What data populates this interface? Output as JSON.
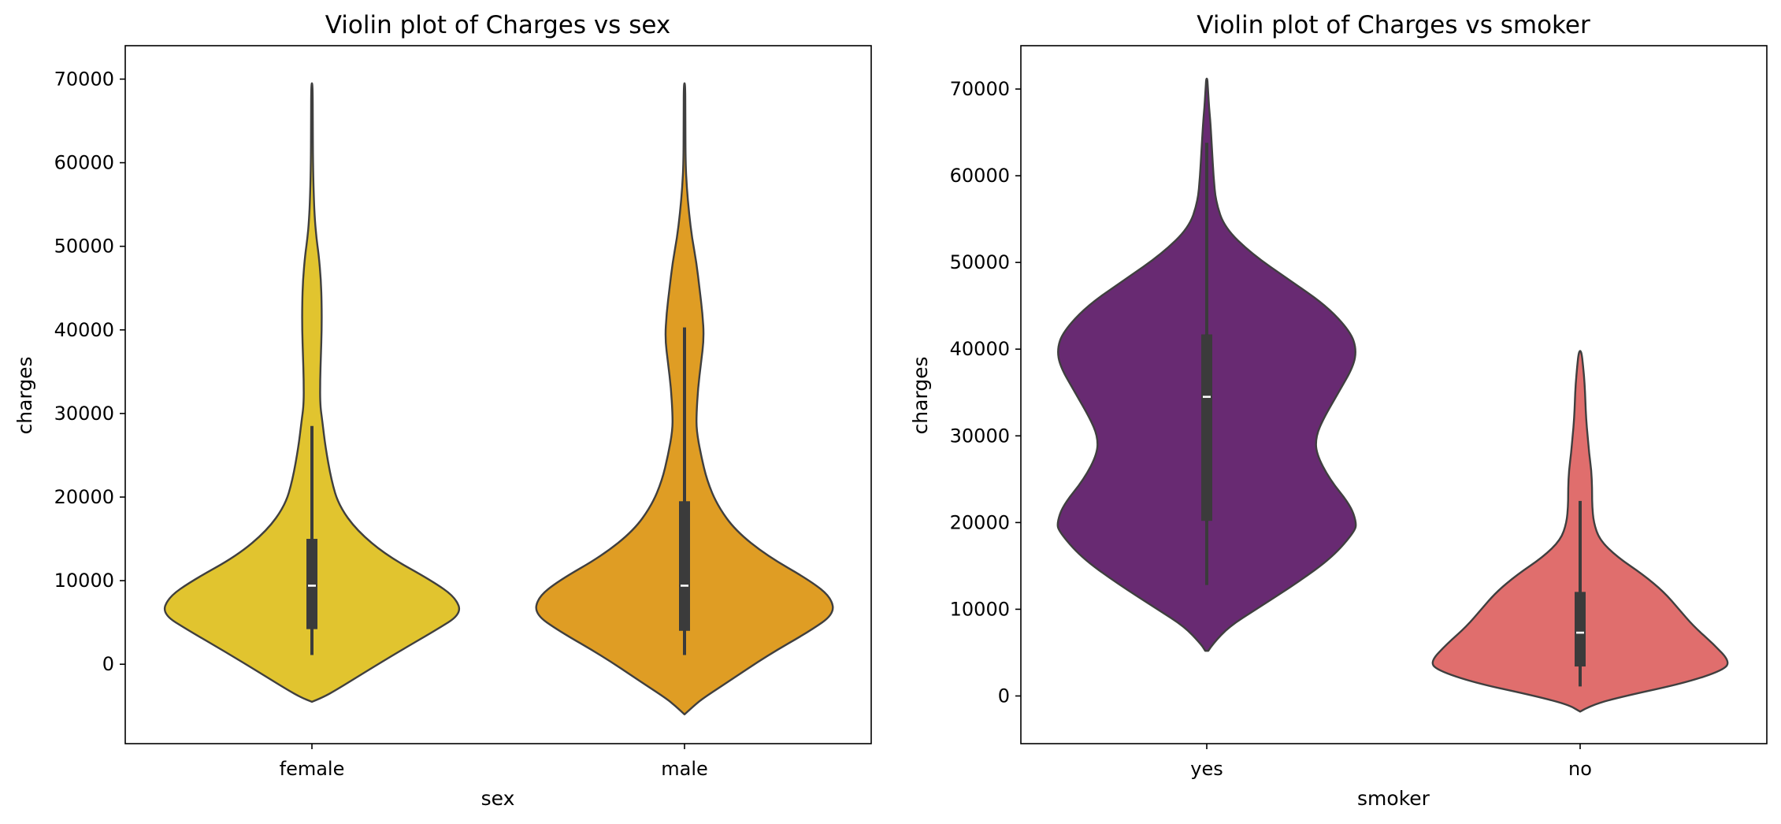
{
  "chart_data": [
    {
      "type": "violin",
      "title": "Violin plot of Charges vs sex",
      "xlabel": "sex",
      "ylabel": "charges",
      "categories": [
        "female",
        "male"
      ],
      "yticks": [
        0,
        10000,
        20000,
        30000,
        40000,
        50000,
        60000,
        70000
      ],
      "ylim": [
        -9500,
        74000
      ],
      "colors": [
        "#e1c42f",
        "#df9d24"
      ],
      "violins": [
        {
          "category": "female",
          "min": -4500,
          "max": 69500,
          "profile": [
            [
              -4500,
              0.0
            ],
            [
              -4000,
              0.07
            ],
            [
              -3000,
              0.17
            ],
            [
              -1000,
              0.35
            ],
            [
              1500,
              0.58
            ],
            [
              4000,
              0.82
            ],
            [
              6000,
              1.0
            ],
            [
              8000,
              0.96
            ],
            [
              10000,
              0.8
            ],
            [
              13000,
              0.5
            ],
            [
              16000,
              0.3
            ],
            [
              19000,
              0.18
            ],
            [
              22000,
              0.13
            ],
            [
              26000,
              0.09
            ],
            [
              29000,
              0.07
            ],
            [
              31000,
              0.055
            ],
            [
              34000,
              0.055
            ],
            [
              37000,
              0.06
            ],
            [
              40000,
              0.065
            ],
            [
              43000,
              0.065
            ],
            [
              46000,
              0.06
            ],
            [
              49000,
              0.045
            ],
            [
              51000,
              0.03
            ],
            [
              53000,
              0.02
            ],
            [
              56000,
              0.012
            ],
            [
              60000,
              0.007
            ],
            [
              65000,
              0.006
            ],
            [
              69500,
              0.005
            ]
          ],
          "q1": 4200,
          "median": 9400,
          "q3": 15000,
          "whisker_low": 1100,
          "whisker_high": 28500
        },
        {
          "category": "male",
          "min": -6000,
          "max": 69500,
          "profile": [
            [
              -6000,
              0.0
            ],
            [
              -5000,
              0.06
            ],
            [
              -4000,
              0.13
            ],
            [
              -2000,
              0.3
            ],
            [
              1000,
              0.55
            ],
            [
              4000,
              0.84
            ],
            [
              6000,
              1.0
            ],
            [
              8000,
              0.98
            ],
            [
              10000,
              0.84
            ],
            [
              13000,
              0.55
            ],
            [
              16000,
              0.34
            ],
            [
              19000,
              0.22
            ],
            [
              22000,
              0.15
            ],
            [
              25000,
              0.11
            ],
            [
              28000,
              0.08
            ],
            [
              30000,
              0.08
            ],
            [
              33000,
              0.09
            ],
            [
              36000,
              0.11
            ],
            [
              39000,
              0.13
            ],
            [
              42000,
              0.12
            ],
            [
              45000,
              0.1
            ],
            [
              48000,
              0.08
            ],
            [
              51000,
              0.05
            ],
            [
              54000,
              0.03
            ],
            [
              57000,
              0.015
            ],
            [
              60000,
              0.007
            ],
            [
              65000,
              0.006
            ],
            [
              69500,
              0.005
            ]
          ],
          "q1": 4000,
          "median": 9400,
          "q3": 19500,
          "whisker_low": 1100,
          "whisker_high": 40300
        }
      ]
    },
    {
      "type": "violin",
      "title": "Violin plot of Charges vs smoker",
      "xlabel": "smoker",
      "ylabel": "charges",
      "categories": [
        "yes",
        "no"
      ],
      "yticks": [
        0,
        10000,
        20000,
        30000,
        40000,
        50000,
        60000,
        70000
      ],
      "ylim": [
        -5500,
        75000
      ],
      "colors": [
        "#682a72",
        "#e06e6d"
      ],
      "violins": [
        {
          "category": "yes",
          "min": 5200,
          "max": 71200,
          "profile": [
            [
              5200,
              0.01
            ],
            [
              6000,
              0.04
            ],
            [
              8000,
              0.15
            ],
            [
              10000,
              0.33
            ],
            [
              13000,
              0.6
            ],
            [
              16000,
              0.84
            ],
            [
              19000,
              0.99
            ],
            [
              20000,
              1.0
            ],
            [
              22000,
              0.96
            ],
            [
              25000,
              0.82
            ],
            [
              28000,
              0.73
            ],
            [
              30000,
              0.73
            ],
            [
              32000,
              0.78
            ],
            [
              35000,
              0.88
            ],
            [
              38000,
              0.98
            ],
            [
              40000,
              1.0
            ],
            [
              42000,
              0.96
            ],
            [
              45000,
              0.8
            ],
            [
              48000,
              0.55
            ],
            [
              51000,
              0.3
            ],
            [
              54000,
              0.12
            ],
            [
              57000,
              0.06
            ],
            [
              60000,
              0.045
            ],
            [
              63000,
              0.035
            ],
            [
              66000,
              0.025
            ],
            [
              68000,
              0.015
            ],
            [
              70000,
              0.008
            ],
            [
              71200,
              0.004
            ]
          ],
          "q1": 20200,
          "median": 34500,
          "q3": 41700,
          "whisker_low": 12800,
          "whisker_high": 63800
        },
        {
          "category": "no",
          "min": -1800,
          "max": 39800,
          "profile": [
            [
              -1800,
              0.0
            ],
            [
              -1000,
              0.08
            ],
            [
              0,
              0.3
            ],
            [
              1500,
              0.7
            ],
            [
              3000,
              0.96
            ],
            [
              4000,
              1.0
            ],
            [
              6000,
              0.89
            ],
            [
              8000,
              0.76
            ],
            [
              10000,
              0.66
            ],
            [
              12000,
              0.56
            ],
            [
              14000,
              0.42
            ],
            [
              16000,
              0.25
            ],
            [
              18000,
              0.13
            ],
            [
              20000,
              0.09
            ],
            [
              22000,
              0.08
            ],
            [
              24000,
              0.08
            ],
            [
              26000,
              0.075
            ],
            [
              28000,
              0.06
            ],
            [
              30000,
              0.05
            ],
            [
              32000,
              0.04
            ],
            [
              34000,
              0.035
            ],
            [
              36000,
              0.03
            ],
            [
              38000,
              0.02
            ],
            [
              39800,
              0.008
            ]
          ],
          "q1": 3400,
          "median": 7300,
          "q3": 12000,
          "whisker_low": 1100,
          "whisker_high": 22500
        }
      ]
    }
  ]
}
